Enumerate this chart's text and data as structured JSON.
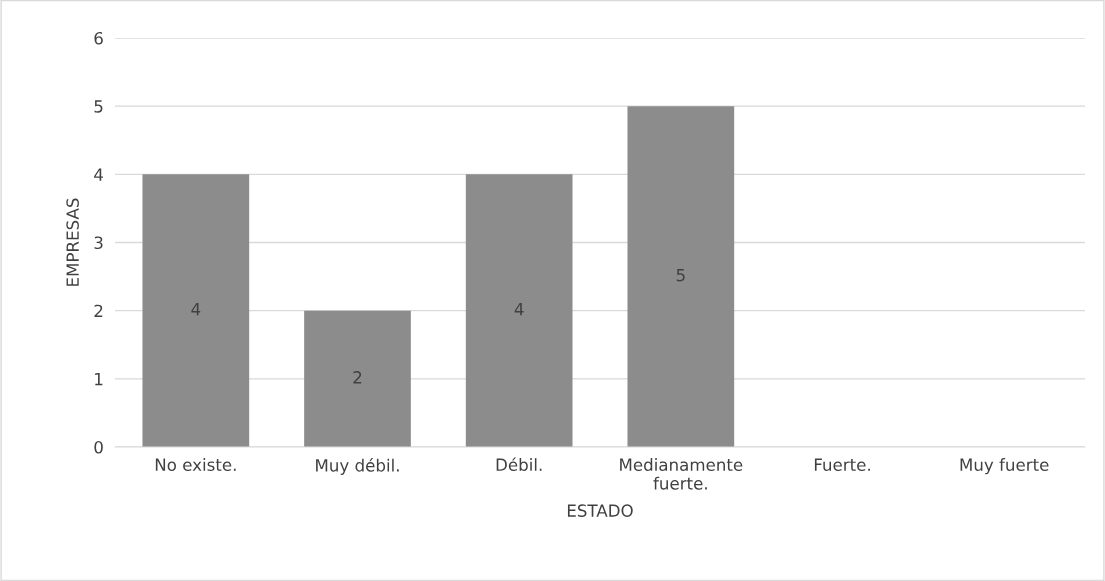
{
  "chart_data": {
    "type": "bar",
    "xlabel": "ESTADO",
    "ylabel": "EMPRESAS",
    "categories": [
      "No existe.",
      "Muy débil.",
      "Débil.",
      "Medianamente\nfuerte.",
      "Fuerte.",
      "Muy fuerte"
    ],
    "values": [
      4,
      2,
      4,
      5,
      0,
      0
    ],
    "value_labels": [
      "4",
      "2",
      "4",
      "5",
      null,
      null
    ],
    "color": "#8c8c8c",
    "ylim": [
      0,
      6
    ],
    "yticks": [
      0,
      1,
      2,
      3,
      4,
      5,
      6
    ],
    "grid": "y",
    "legend": false
  }
}
